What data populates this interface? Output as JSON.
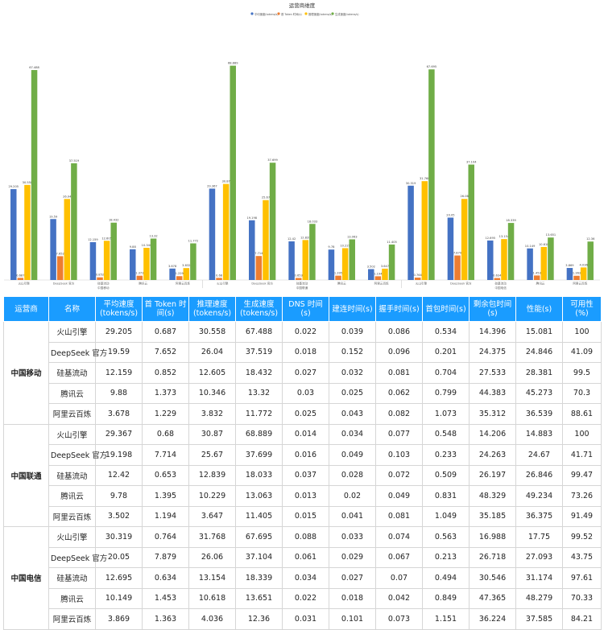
{
  "chart_data": {
    "type": "bar",
    "title": "运营商维度",
    "series": [
      {
        "name": "平均速度(tokens/s)",
        "color": "#4472c4",
        "values": [
          29.205,
          19.59,
          12.159,
          9.88,
          3.678,
          29.367,
          19.198,
          12.42,
          9.78,
          3.502,
          30.319,
          20.05,
          12.695,
          10.149,
          3.869
        ]
      },
      {
        "name": "首 Token 时间(s)",
        "color": "#ed7d31",
        "values": [
          0.687,
          7.652,
          0.852,
          1.373,
          1.229,
          0.68,
          7.714,
          0.653,
          1.395,
          1.194,
          0.764,
          7.879,
          0.634,
          1.453,
          1.363
        ]
      },
      {
        "name": "推理速度(tokens/s)",
        "color": "#ffc000",
        "values": [
          30.558,
          26.04,
          12.605,
          10.346,
          3.832,
          30.87,
          25.67,
          12.839,
          10.229,
          3.647,
          31.768,
          26.06,
          13.154,
          10.618,
          4.036
        ]
      },
      {
        "name": "生成速度(tokens/s)",
        "color": "#70ad47",
        "values": [
          67.488,
          37.519,
          18.432,
          13.32,
          11.772,
          68.889,
          37.699,
          18.033,
          13.063,
          11.405,
          67.695,
          37.104,
          18.339,
          13.651,
          12.36
        ]
      }
    ],
    "groups": [
      {
        "operator": "中国移动",
        "names": [
          "火山引擎",
          "DeepSeek 官方",
          "硅基流动",
          "腾讯云",
          "阿里云百炼"
        ]
      },
      {
        "operator": "中国联通",
        "names": [
          "火山引擎",
          "DeepSeek 官方",
          "硅基流动",
          "腾讯云",
          "阿里云百炼"
        ]
      },
      {
        "operator": "中国电信",
        "names": [
          "火山引擎",
          "DeepSeek 官方",
          "硅基流动",
          "腾讯云",
          "阿里云百炼"
        ]
      }
    ],
    "ylim": [
      0,
      75
    ],
    "legend_position": "top-center",
    "grid": false
  },
  "table": {
    "headers": [
      "运营商",
      "名称",
      "平均速度(tokens/s)",
      "首 Token 时间(s)",
      "推理速度(tokens/s)",
      "生成速度(tokens/s)",
      "DNS 时间(s)",
      "建连时间(s)",
      "握手时间(s)",
      "首包时间(s)",
      "剩余包时间(s)",
      "性能(s)",
      "可用性(%)"
    ],
    "groups": [
      {
        "operator": "中国移动",
        "rows": [
          [
            "火山引擎",
            "29.205",
            "0.687",
            "30.558",
            "67.488",
            "0.022",
            "0.039",
            "0.086",
            "0.534",
            "14.396",
            "15.081",
            "100"
          ],
          [
            "DeepSeek 官方",
            "19.59",
            "7.652",
            "26.04",
            "37.519",
            "0.018",
            "0.152",
            "0.096",
            "0.201",
            "24.375",
            "24.846",
            "41.09"
          ],
          [
            "硅基流动",
            "12.159",
            "0.852",
            "12.605",
            "18.432",
            "0.027",
            "0.032",
            "0.081",
            "0.704",
            "27.533",
            "28.381",
            "99.5"
          ],
          [
            "腾讯云",
            "9.88",
            "1.373",
            "10.346",
            "13.32",
            "0.03",
            "0.025",
            "0.062",
            "0.799",
            "44.383",
            "45.273",
            "70.3"
          ],
          [
            "阿里云百炼",
            "3.678",
            "1.229",
            "3.832",
            "11.772",
            "0.025",
            "0.043",
            "0.082",
            "1.073",
            "35.312",
            "36.539",
            "88.61"
          ]
        ]
      },
      {
        "operator": "中国联通",
        "rows": [
          [
            "火山引擎",
            "29.367",
            "0.68",
            "30.87",
            "68.889",
            "0.014",
            "0.034",
            "0.077",
            "0.548",
            "14.206",
            "14.883",
            "100"
          ],
          [
            "DeepSeek 官方",
            "19.198",
            "7.714",
            "25.67",
            "37.699",
            "0.016",
            "0.049",
            "0.103",
            "0.233",
            "24.263",
            "24.67",
            "41.71"
          ],
          [
            "硅基流动",
            "12.42",
            "0.653",
            "12.839",
            "18.033",
            "0.037",
            "0.028",
            "0.072",
            "0.509",
            "26.197",
            "26.846",
            "99.47"
          ],
          [
            "腾讯云",
            "9.78",
            "1.395",
            "10.229",
            "13.063",
            "0.013",
            "0.02",
            "0.049",
            "0.831",
            "48.329",
            "49.234",
            "73.26"
          ],
          [
            "阿里云百炼",
            "3.502",
            "1.194",
            "3.647",
            "11.405",
            "0.015",
            "0.041",
            "0.081",
            "1.049",
            "35.185",
            "36.375",
            "91.49"
          ]
        ]
      },
      {
        "operator": "中国电信",
        "rows": [
          [
            "火山引擎",
            "30.319",
            "0.764",
            "31.768",
            "67.695",
            "0.088",
            "0.033",
            "0.074",
            "0.563",
            "16.988",
            "17.75",
            "99.52"
          ],
          [
            "DeepSeek 官方",
            "20.05",
            "7.879",
            "26.06",
            "37.104",
            "0.061",
            "0.029",
            "0.067",
            "0.213",
            "26.718",
            "27.093",
            "43.75"
          ],
          [
            "硅基流动",
            "12.695",
            "0.634",
            "13.154",
            "18.339",
            "0.034",
            "0.027",
            "0.07",
            "0.494",
            "30.546",
            "31.174",
            "97.61"
          ],
          [
            "腾讯云",
            "10.149",
            "1.453",
            "10.618",
            "13.651",
            "0.022",
            "0.018",
            "0.042",
            "0.849",
            "47.365",
            "48.279",
            "70.33"
          ],
          [
            "阿里云百炼",
            "3.869",
            "1.363",
            "4.036",
            "12.36",
            "0.031",
            "0.101",
            "0.073",
            "1.151",
            "36.224",
            "37.585",
            "84.21"
          ]
        ]
      }
    ]
  }
}
